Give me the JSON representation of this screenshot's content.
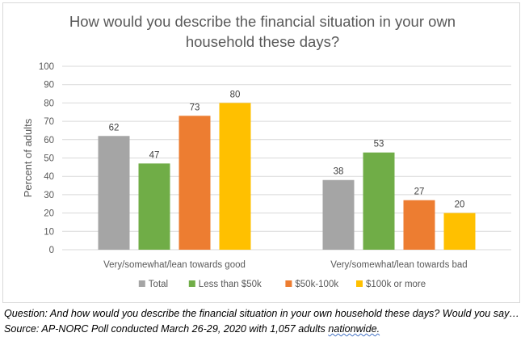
{
  "chart_data": {
    "type": "bar",
    "title_lines": [
      "How would you describe the financial situation in your own",
      "household these days?"
    ],
    "ylabel": "Percent of adults",
    "xlabel": "",
    "ylim": [
      0,
      100
    ],
    "yticks": [
      0,
      10,
      20,
      30,
      40,
      50,
      60,
      70,
      80,
      90,
      100
    ],
    "grid": true,
    "legend_position": "bottom",
    "categories": [
      "Very/somewhat/lean towards good",
      "Very/somewhat/lean towards bad"
    ],
    "series": [
      {
        "name": "Total",
        "color": "#a5a5a5",
        "values": [
          62,
          38
        ]
      },
      {
        "name": "Less than $50k",
        "color": "#70ad47",
        "values": [
          47,
          53
        ]
      },
      {
        "name": "$50k-100k",
        "color": "#ed7d31",
        "values": [
          73,
          27
        ]
      },
      {
        "name": "$100k or more",
        "color": "#ffc000",
        "values": [
          80,
          20
        ]
      }
    ]
  },
  "notes": {
    "question": "Question: And how would you describe the financial situation in your own household these days? Would you say…",
    "source_prefix": "Source: AP-NORC Poll conducted March 26-29, 2020 with 1,057 adults ",
    "source_last_word": "nationwide."
  }
}
